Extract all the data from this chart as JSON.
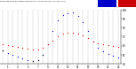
{
  "hours": [
    0,
    1,
    2,
    3,
    4,
    5,
    6,
    7,
    8,
    9,
    10,
    11,
    12,
    13,
    14,
    15,
    16,
    17,
    18,
    19,
    20,
    21,
    22,
    23
  ],
  "outdoor_temp": [
    62,
    61,
    60,
    59,
    58,
    57,
    56,
    56,
    58,
    62,
    66,
    70,
    73,
    74,
    74,
    73,
    71,
    68,
    65,
    63,
    62,
    61,
    60,
    59
  ],
  "thsw_index": [
    55,
    52,
    50,
    48,
    46,
    44,
    43,
    44,
    50,
    62,
    76,
    88,
    94,
    96,
    97,
    93,
    86,
    76,
    65,
    58,
    54,
    51,
    49,
    47
  ],
  "outdoor_temp_color": "#ff0000",
  "thsw_color": "#0000ff",
  "black_color": "#000000",
  "bg_color": "#ffffff",
  "grid_color": "#888888",
  "ylim": [
    40,
    100
  ],
  "ytick_labels": [
    "40",
    "50",
    "60",
    "70",
    "80",
    "90",
    "100"
  ],
  "ytick_vals": [
    40,
    50,
    60,
    70,
    80,
    90,
    100
  ],
  "legend_blue": "#0000cc",
  "legend_red": "#cc0000",
  "xtick_labels": [
    "1",
    "3",
    "5",
    "7",
    "9",
    "11",
    "13",
    "15",
    "17",
    "19",
    "21",
    "23"
  ],
  "xtick_positions": [
    1,
    3,
    5,
    7,
    9,
    11,
    13,
    15,
    17,
    19,
    21,
    23
  ]
}
